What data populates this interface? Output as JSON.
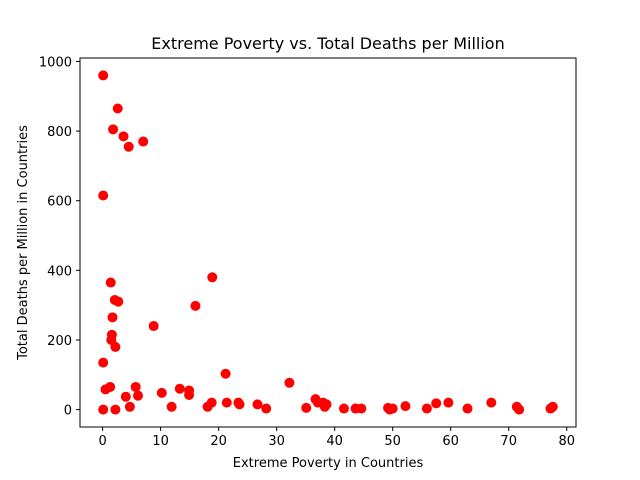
{
  "chart_data": {
    "type": "scatter",
    "title": "Extreme Poverty vs. Total Deaths per Million",
    "xlabel": "Extreme Poverty in Countries",
    "ylabel": "Total Deaths per Million in Countries",
    "xlim": [
      -3.9,
      81.6
    ],
    "ylim": [
      -50,
      1010
    ],
    "xticks": [
      0,
      10,
      20,
      30,
      40,
      50,
      60,
      70,
      80
    ],
    "yticks": [
      0,
      200,
      400,
      600,
      800,
      1000
    ],
    "grid": false,
    "marker_color": "#ff0000",
    "points": [
      {
        "x": 0.1,
        "y": 960
      },
      {
        "x": 0.1,
        "y": 615
      },
      {
        "x": 0.1,
        "y": 135
      },
      {
        "x": 0.1,
        "y": 0
      },
      {
        "x": 0.5,
        "y": 58
      },
      {
        "x": 1.3,
        "y": 65
      },
      {
        "x": 1.4,
        "y": 365
      },
      {
        "x": 1.5,
        "y": 200
      },
      {
        "x": 1.6,
        "y": 215
      },
      {
        "x": 1.7,
        "y": 265
      },
      {
        "x": 1.8,
        "y": 805
      },
      {
        "x": 2.1,
        "y": 315
      },
      {
        "x": 2.2,
        "y": 180
      },
      {
        "x": 2.2,
        "y": 0
      },
      {
        "x": 2.6,
        "y": 865
      },
      {
        "x": 2.7,
        "y": 310
      },
      {
        "x": 3.6,
        "y": 785
      },
      {
        "x": 4.0,
        "y": 37
      },
      {
        "x": 4.5,
        "y": 755
      },
      {
        "x": 4.7,
        "y": 8
      },
      {
        "x": 5.7,
        "y": 65
      },
      {
        "x": 6.1,
        "y": 40
      },
      {
        "x": 7.0,
        "y": 770
      },
      {
        "x": 8.8,
        "y": 240
      },
      {
        "x": 10.2,
        "y": 48
      },
      {
        "x": 11.9,
        "y": 8
      },
      {
        "x": 13.3,
        "y": 60
      },
      {
        "x": 14.9,
        "y": 55
      },
      {
        "x": 14.9,
        "y": 42
      },
      {
        "x": 16.0,
        "y": 298
      },
      {
        "x": 18.1,
        "y": 8
      },
      {
        "x": 18.8,
        "y": 20
      },
      {
        "x": 18.9,
        "y": 380
      },
      {
        "x": 21.2,
        "y": 103
      },
      {
        "x": 21.4,
        "y": 20
      },
      {
        "x": 23.4,
        "y": 20
      },
      {
        "x": 23.6,
        "y": 15
      },
      {
        "x": 26.7,
        "y": 15
      },
      {
        "x": 28.2,
        "y": 3
      },
      {
        "x": 32.2,
        "y": 77
      },
      {
        "x": 35.1,
        "y": 5
      },
      {
        "x": 36.7,
        "y": 30
      },
      {
        "x": 37.1,
        "y": 20
      },
      {
        "x": 38.0,
        "y": 20
      },
      {
        "x": 38.3,
        "y": 8
      },
      {
        "x": 38.6,
        "y": 15
      },
      {
        "x": 41.6,
        "y": 3
      },
      {
        "x": 43.6,
        "y": 3
      },
      {
        "x": 44.6,
        "y": 3
      },
      {
        "x": 49.2,
        "y": 5
      },
      {
        "x": 49.5,
        "y": 0
      },
      {
        "x": 50.0,
        "y": 3
      },
      {
        "x": 52.2,
        "y": 10
      },
      {
        "x": 55.9,
        "y": 3
      },
      {
        "x": 57.5,
        "y": 18
      },
      {
        "x": 59.6,
        "y": 20
      },
      {
        "x": 62.9,
        "y": 3
      },
      {
        "x": 67.0,
        "y": 20
      },
      {
        "x": 71.4,
        "y": 8
      },
      {
        "x": 71.8,
        "y": 0
      },
      {
        "x": 77.2,
        "y": 3
      },
      {
        "x": 77.6,
        "y": 8
      }
    ]
  }
}
